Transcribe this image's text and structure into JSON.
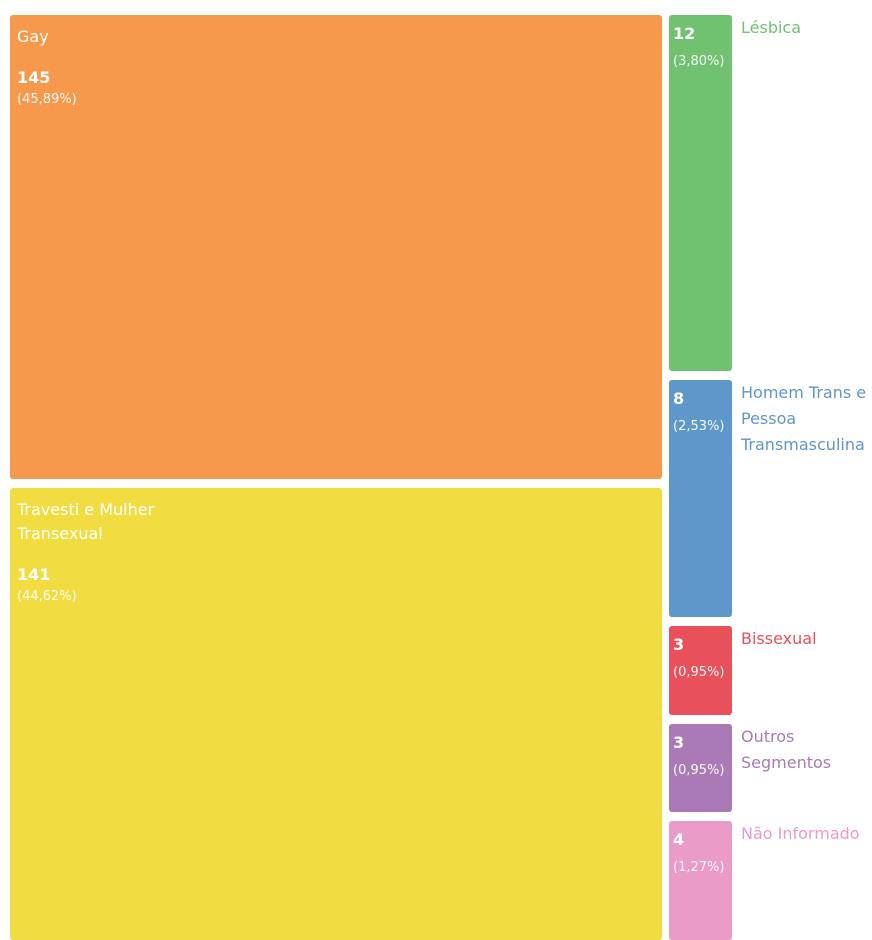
{
  "chart_data": {
    "type": "treemap",
    "categories": [
      "Gay",
      "Travesti e Mulher Transexual",
      "Lésbica",
      "Homem Trans e Pessoa Transmasculina",
      "Bissexual",
      "Outros Segmentos",
      "Não Informado"
    ],
    "values": [
      145,
      141,
      12,
      8,
      3,
      3,
      4
    ],
    "percentages": [
      45.89,
      44.62,
      3.8,
      2.53,
      0.95,
      0.95,
      1.27
    ],
    "percentage_labels": [
      "(45,89%)",
      "(44,62%)",
      "(3,80%)",
      "(2,53%)",
      "(0,95%)",
      "(0,95%)",
      "(1,27%)"
    ],
    "colors": [
      "#f7994c",
      "#f1dc41",
      "#70c170",
      "#5e97c9",
      "#e8505b",
      "#a97ab6",
      "#ea9bc8"
    ]
  }
}
